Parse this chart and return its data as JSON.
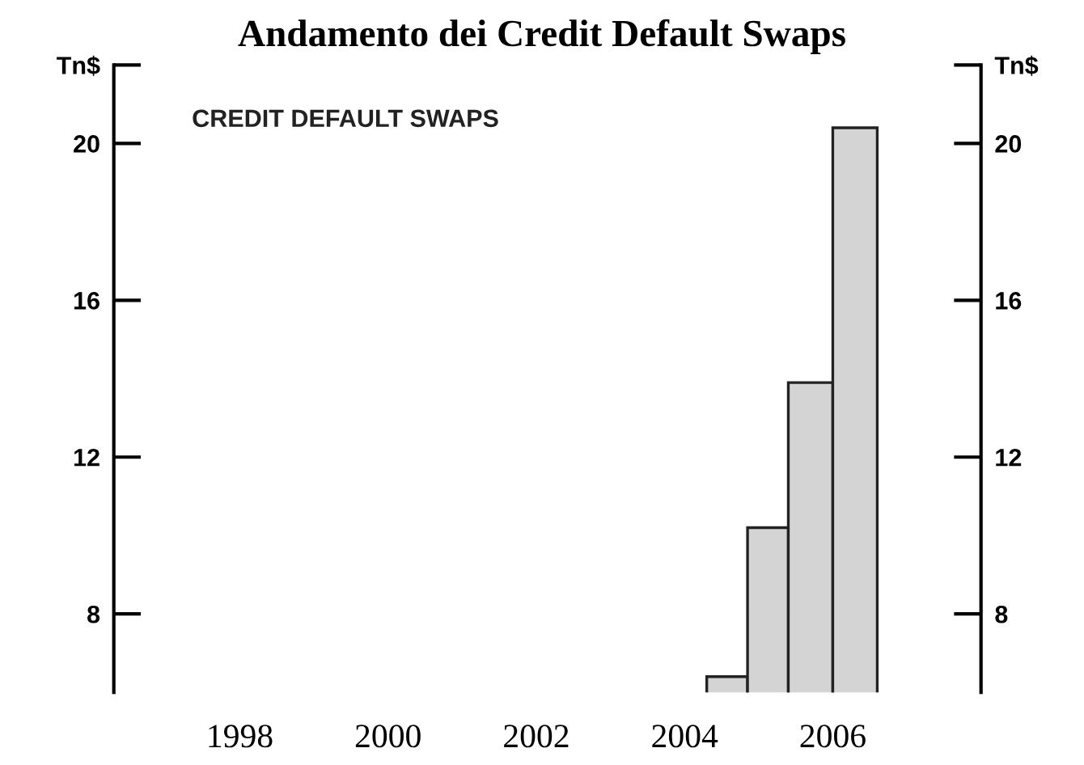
{
  "chart_data": {
    "type": "histogram",
    "title": "Andamento dei Credit Default Swaps",
    "annotations": [
      "CREDIT DEFAULT SWAPS"
    ],
    "bins": [
      2004.3,
      2004.85,
      2005.4,
      2006.0,
      2006.6
    ],
    "values": [
      6.4,
      10.2,
      13.9,
      20.4
    ],
    "color": "#d4d4d4",
    "xlim": [
      1996.3,
      2008.0
    ],
    "xticks": [
      1998,
      2000,
      2002,
      2004,
      2006
    ],
    "ylim": [
      6,
      22
    ],
    "yticks": [
      8,
      12,
      16,
      20,
      {
        "value": 22,
        "label": "Tn$"
      }
    ],
    "y2lim": [
      6,
      22
    ],
    "y2ticks": [
      8,
      12,
      16,
      20,
      {
        "value": 22,
        "label": "Tn$"
      }
    ],
    "grid": false
  }
}
